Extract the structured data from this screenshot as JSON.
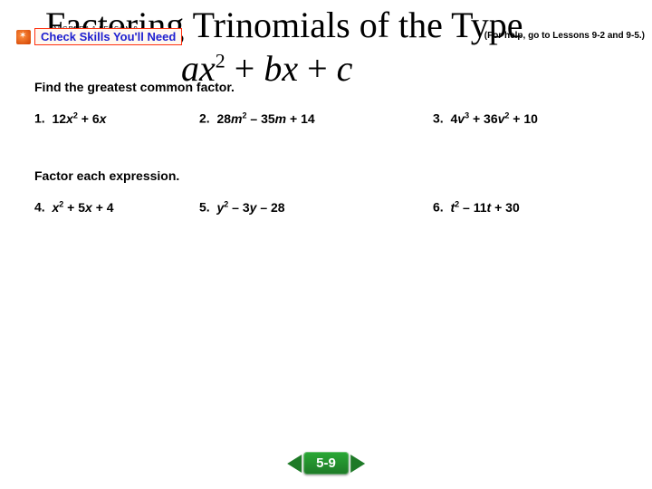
{
  "title": {
    "line1": "Factoring Trinomials of the Type",
    "line2_html": "<span class='var'>ax</span><sup>2</sup><span class='plain'> + </span><span class='var'>bx</span><span class='plain'> + </span><span class='var'>c</span>"
  },
  "algebra_tag": "ALGEBRA 1 LESSON 9-6",
  "badge": {
    "text": "Check Skills You'll Need"
  },
  "help_note": "(For help, go to Lessons 9-2 and 9-5.)",
  "instructions": {
    "gcf": "Find the greatest common factor.",
    "factor": "Factor each expression."
  },
  "problems": {
    "p1": {
      "n": "1.",
      "html": "12<span class='var'>x</span><sup>2</sup> + 6<span class='var'>x</span>"
    },
    "p2": {
      "n": "2.",
      "html": "28<span class='var'>m</span><sup>2</sup> – 35<span class='var'>m</span> + 14"
    },
    "p3": {
      "n": "3.",
      "html": "4<span class='var'>v</span><sup>3</sup> + 36<span class='var'>v</span><sup>2</sup> + 10"
    },
    "p4": {
      "n": "4.",
      "html": "<span class='var'>x</span><sup>2</sup> + 5<span class='var'>x</span> + 4"
    },
    "p5": {
      "n": "5.",
      "html": "<span class='var'>y</span><sup>2</sup> – 3<span class='var'>y</span> – 28"
    },
    "p6": {
      "n": "6.",
      "html": "<span class='var'>t</span><sup>2</sup> – 11<span class='var'>t</span> + 30"
    }
  },
  "nav": {
    "label": "5-9"
  },
  "colors": {
    "accent_green": "#1e7a27",
    "badge_border": "#ff3010",
    "badge_text": "#2020d0"
  }
}
